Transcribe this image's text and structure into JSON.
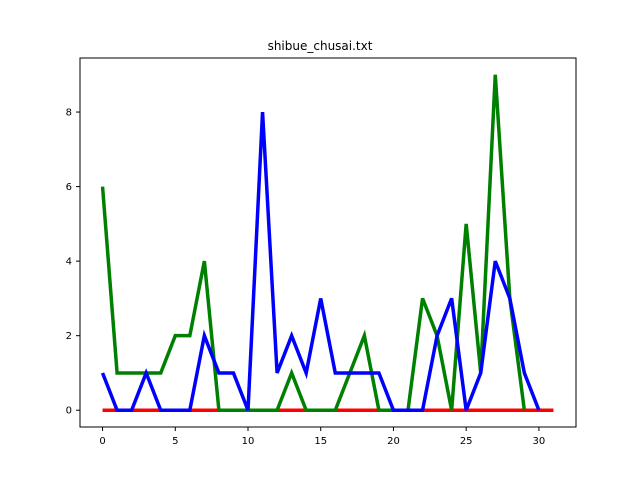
{
  "chart_data": {
    "type": "line",
    "title": "shibue_chusai.txt",
    "xlabel": "",
    "ylabel": "",
    "xlim": [
      -1.55,
      32.55
    ],
    "ylim": [
      -0.45,
      9.45
    ],
    "xticks": [
      0,
      5,
      10,
      15,
      20,
      25,
      30
    ],
    "yticks": [
      0,
      2,
      4,
      6,
      8
    ],
    "grid": false,
    "legend": "none",
    "series": [
      {
        "color": "#ff0000",
        "x": [
          0,
          1,
          2,
          3,
          4,
          5,
          6,
          7,
          8,
          9,
          10,
          11,
          12,
          13,
          14,
          15,
          16,
          17,
          18,
          19,
          20,
          21,
          22,
          23,
          24,
          25,
          26,
          27,
          28,
          29,
          30,
          31
        ],
        "values": [
          0,
          0,
          0,
          0,
          0,
          0,
          0,
          0,
          0,
          0,
          0,
          0,
          0,
          0,
          0,
          0,
          0,
          0,
          0,
          0,
          0,
          0,
          0,
          0,
          0,
          0,
          0,
          0,
          0,
          0,
          0,
          0
        ]
      },
      {
        "color": "#008000",
        "x": [
          0,
          1,
          2,
          3,
          4,
          5,
          6,
          7,
          8,
          9,
          10,
          11,
          12,
          13,
          14,
          15,
          16,
          17,
          18,
          19,
          20,
          21,
          22,
          23,
          24,
          25,
          26,
          27,
          28,
          29
        ],
        "values": [
          6,
          1,
          1,
          1,
          1,
          2,
          2,
          4,
          0,
          0,
          0,
          0,
          0,
          1,
          0,
          0,
          0,
          1,
          2,
          0,
          0,
          0,
          3,
          2,
          0,
          5,
          1,
          9,
          3,
          0
        ]
      },
      {
        "color": "#0000ff",
        "x": [
          0,
          1,
          2,
          3,
          4,
          5,
          6,
          7,
          8,
          9,
          10,
          11,
          12,
          13,
          14,
          15,
          16,
          17,
          18,
          19,
          20,
          21,
          22,
          23,
          24,
          25,
          26,
          27,
          28,
          29,
          30
        ],
        "values": [
          1,
          0,
          0,
          1,
          0,
          0,
          0,
          2,
          1,
          1,
          0,
          8,
          1,
          2,
          1,
          3,
          1,
          1,
          1,
          1,
          0,
          0,
          0,
          2,
          3,
          0,
          1,
          4,
          3,
          1,
          0
        ]
      }
    ]
  }
}
